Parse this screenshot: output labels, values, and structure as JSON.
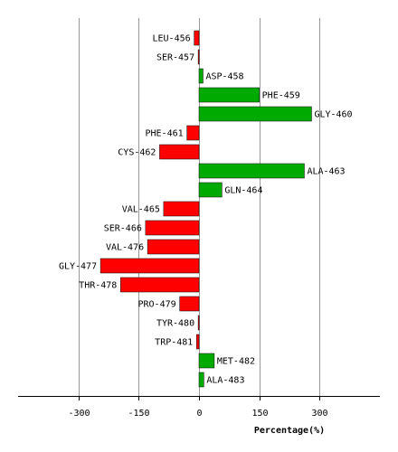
{
  "chart_data": {
    "type": "bar",
    "orientation": "horizontal",
    "title": "",
    "xlabel": "Percentage(%)",
    "ylabel": "",
    "xlim": [
      -450,
      450
    ],
    "xticks": [
      -300,
      -150,
      0,
      150,
      300
    ],
    "grid": true,
    "colors": {
      "positive": "#00aa00",
      "negative": "#ff0000",
      "edge": "#000000",
      "grid": "#999999"
    },
    "categories": [
      "LEU-456",
      "SER-457",
      "ASP-458",
      "PHE-459",
      "GLY-460",
      "PHE-461",
      "CYS-462",
      "ALA-463",
      "GLN-464",
      "VAL-465",
      "SER-466",
      "VAL-476",
      "GLY-477",
      "THR-478",
      "PRO-479",
      "TYR-480",
      "TRP-481",
      "MET-482",
      "ALA-483"
    ],
    "values": [
      -12,
      -2,
      10,
      150,
      280,
      -30,
      -98,
      262,
      57,
      -88,
      -133,
      -128,
      -245,
      -195,
      -48,
      -2,
      -6,
      38,
      12
    ]
  }
}
